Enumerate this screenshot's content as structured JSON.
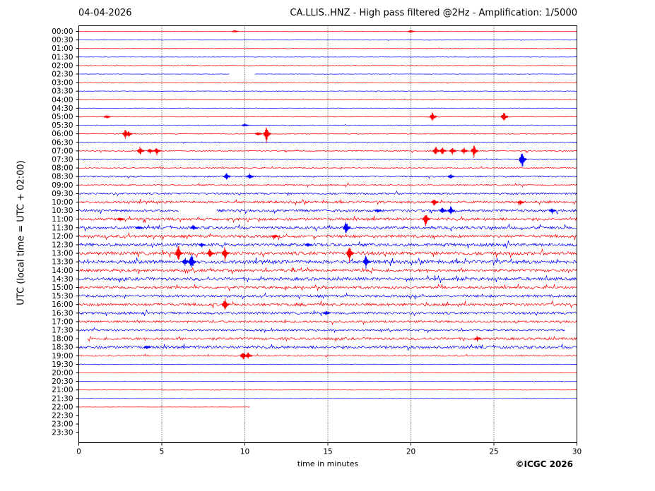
{
  "header": {
    "date": "04-04-2026",
    "title": "CA.LLIS..HNZ - High pass filtered @2Hz - Amplification: 1/5000"
  },
  "footer": {
    "copyright": "©ICGC 2026"
  },
  "chart_data": {
    "type": "line",
    "title": "CA.LLIS..HNZ - High pass filtered @2Hz - Amplification: 1/5000",
    "xlabel": "time in minutes",
    "ylabel": "UTC (local time = UTC + 02:00)",
    "xlim": [
      0,
      30
    ],
    "xticks": [
      "0",
      "5",
      "10",
      "15",
      "20",
      "25",
      "30"
    ],
    "grid_x": [
      5,
      10,
      15,
      20,
      25
    ],
    "row_labels": [
      "00:00",
      "00:30",
      "01:00",
      "01:30",
      "02:00",
      "02:30",
      "03:00",
      "03:30",
      "04:00",
      "04:30",
      "05:00",
      "05:30",
      "06:00",
      "06:30",
      "07:00",
      "07:30",
      "08:00",
      "08:30",
      "09:00",
      "09:30",
      "10:00",
      "10:30",
      "11:00",
      "11:30",
      "12:00",
      "12:30",
      "13:00",
      "13:30",
      "14:00",
      "14:30",
      "15:00",
      "15:30",
      "16:00",
      "16:30",
      "17:00",
      "17:30",
      "18:00",
      "18:30",
      "19:00",
      "19:30",
      "20:00",
      "20:30",
      "21:00",
      "21:30",
      "22:00",
      "22:30",
      "23:00",
      "23:30"
    ],
    "colors": [
      "#ff0000",
      "#0000ff"
    ],
    "noise_levels": [
      0.4,
      0.3,
      0.4,
      0.3,
      0.4,
      0.3,
      0.4,
      0.4,
      0.4,
      0.4,
      0.5,
      0.5,
      0.6,
      0.6,
      0.8,
      0.6,
      0.8,
      0.9,
      1.0,
      1.2,
      1.6,
      1.6,
      1.8,
      1.8,
      1.8,
      2.0,
      2.2,
      2.2,
      1.8,
      2.0,
      1.6,
      1.6,
      1.8,
      1.6,
      1.4,
      1.2,
      1.6,
      1.8,
      0.8,
      0.4,
      0.3,
      0.3,
      0.3,
      0.2,
      0.2,
      0,
      0,
      0
    ],
    "segments": [
      {
        "row": 5,
        "ranges": [
          [
            0,
            9.1
          ],
          [
            10.6,
            30
          ]
        ]
      },
      {
        "row": 21,
        "ranges": [
          [
            0,
            6.0
          ],
          [
            8.3,
            30
          ]
        ]
      },
      {
        "row": 35,
        "ranges": [
          [
            0,
            29.3
          ]
        ]
      },
      {
        "row": 36,
        "ranges": [
          [
            0.5,
            30
          ]
        ]
      },
      {
        "row": 44,
        "ranges": [
          [
            0,
            10.3
          ]
        ]
      }
    ],
    "events": [
      {
        "row": 0,
        "x": 9.4,
        "amp": 2
      },
      {
        "row": 0,
        "x": 20.0,
        "amp": 2
      },
      {
        "row": 10,
        "x": 1.7,
        "amp": 3
      },
      {
        "row": 10,
        "x": 21.3,
        "amp": 8
      },
      {
        "row": 10,
        "x": 25.6,
        "amp": 10
      },
      {
        "row": 11,
        "x": 10.0,
        "amp": 3
      },
      {
        "row": 12,
        "x": 2.8,
        "amp": 8
      },
      {
        "row": 12,
        "x": 3.0,
        "amp": 6
      },
      {
        "row": 12,
        "x": 10.8,
        "amp": 4
      },
      {
        "row": 12,
        "x": 11.3,
        "amp": 14
      },
      {
        "row": 14,
        "x": 3.7,
        "amp": 8
      },
      {
        "row": 14,
        "x": 4.3,
        "amp": 5
      },
      {
        "row": 14,
        "x": 4.7,
        "amp": 7
      },
      {
        "row": 14,
        "x": 21.5,
        "amp": 8
      },
      {
        "row": 14,
        "x": 21.9,
        "amp": 7
      },
      {
        "row": 14,
        "x": 22.5,
        "amp": 6
      },
      {
        "row": 14,
        "x": 23.2,
        "amp": 6
      },
      {
        "row": 14,
        "x": 23.8,
        "amp": 11
      },
      {
        "row": 15,
        "x": 26.7,
        "amp": 16
      },
      {
        "row": 17,
        "x": 8.9,
        "amp": 6
      },
      {
        "row": 17,
        "x": 10.3,
        "amp": 6
      },
      {
        "row": 17,
        "x": 22.4,
        "amp": 4
      },
      {
        "row": 20,
        "x": 21.4,
        "amp": 7
      },
      {
        "row": 20,
        "x": 26.6,
        "amp": 4
      },
      {
        "row": 21,
        "x": 18.0,
        "amp": 4
      },
      {
        "row": 21,
        "x": 21.9,
        "amp": 6
      },
      {
        "row": 21,
        "x": 22.4,
        "amp": 8
      },
      {
        "row": 21,
        "x": 28.5,
        "amp": 5
      },
      {
        "row": 22,
        "x": 2.5,
        "amp": 4
      },
      {
        "row": 22,
        "x": 20.9,
        "amp": 12
      },
      {
        "row": 23,
        "x": 3.6,
        "amp": 3
      },
      {
        "row": 23,
        "x": 6.9,
        "amp": 5
      },
      {
        "row": 23,
        "x": 16.1,
        "amp": 12
      },
      {
        "row": 24,
        "x": 11.8,
        "amp": 3
      },
      {
        "row": 25,
        "x": 7.4,
        "amp": 4
      },
      {
        "row": 25,
        "x": 13.8,
        "amp": 4
      },
      {
        "row": 26,
        "x": 6.0,
        "amp": 14
      },
      {
        "row": 26,
        "x": 7.9,
        "amp": 8
      },
      {
        "row": 26,
        "x": 8.8,
        "amp": 12
      },
      {
        "row": 26,
        "x": 16.3,
        "amp": 14
      },
      {
        "row": 27,
        "x": 6.4,
        "amp": 8
      },
      {
        "row": 27,
        "x": 6.8,
        "amp": 14
      },
      {
        "row": 27,
        "x": 17.3,
        "amp": 12
      },
      {
        "row": 32,
        "x": 8.8,
        "amp": 12
      },
      {
        "row": 33,
        "x": 14.9,
        "amp": 4
      },
      {
        "row": 36,
        "x": 24.0,
        "amp": 4
      },
      {
        "row": 37,
        "x": 4.1,
        "amp": 4
      },
      {
        "row": 38,
        "x": 9.9,
        "amp": 8
      },
      {
        "row": 38,
        "x": 10.2,
        "amp": 6
      }
    ]
  }
}
